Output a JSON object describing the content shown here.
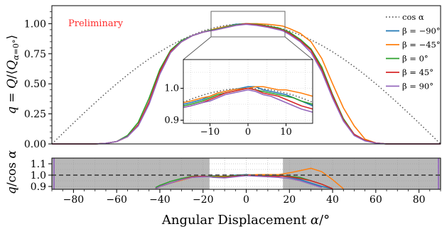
{
  "annotation": "Preliminary",
  "colors": {
    "cos": "#555555",
    "b_m90": "#1f77b4",
    "b_m45": "#ff7f0e",
    "b_0": "#2ca02c",
    "b_45": "#d62728",
    "b_90": "#9467bd",
    "annotation": "#ff2b2b",
    "shade": "#b8b8b8",
    "ref_line": "#555555"
  },
  "chart_data": [
    {
      "type": "line",
      "panel": "main",
      "ylabel": "q = Q/⟨Q_{α=0°}⟩",
      "xlim": [
        -90,
        90
      ],
      "ylim": [
        0,
        1.15
      ],
      "y_ticks": [
        "0.00",
        "0.25",
        "0.50",
        "0.75",
        "1.00"
      ],
      "grid": false,
      "legend_position": "top-right",
      "x": [
        -90,
        -85,
        -80,
        -75,
        -70,
        -65,
        -60,
        -55,
        -50,
        -45,
        -40,
        -35,
        -30,
        -25,
        -20,
        -17,
        -15,
        -10,
        -5,
        0,
        5,
        10,
        15,
        17,
        20,
        25,
        30,
        35,
        40,
        45,
        50,
        55,
        60,
        65,
        70,
        75,
        80,
        85,
        90
      ],
      "series": [
        {
          "name": "cos α",
          "style": "dotted",
          "values": [
            0.0,
            0.087,
            0.174,
            0.259,
            0.342,
            0.423,
            0.5,
            0.574,
            0.643,
            0.707,
            0.766,
            0.819,
            0.866,
            0.906,
            0.94,
            0.956,
            0.966,
            0.985,
            0.996,
            1.0,
            0.996,
            0.985,
            0.966,
            0.956,
            0.94,
            0.906,
            0.866,
            0.819,
            0.766,
            0.707,
            0.643,
            0.574,
            0.5,
            0.423,
            0.342,
            0.259,
            0.174,
            0.087,
            0.0
          ]
        },
        {
          "name": "β = −90°",
          "values": [
            0.0,
            0.0,
            0.0,
            0.0,
            0.0,
            0.005,
            0.02,
            0.06,
            0.16,
            0.34,
            0.6,
            0.77,
            0.85,
            0.9,
            0.93,
            0.945,
            0.95,
            0.975,
            0.995,
            1.0,
            0.995,
            0.98,
            0.955,
            0.945,
            0.92,
            0.86,
            0.78,
            0.62,
            0.39,
            0.2,
            0.08,
            0.03,
            0.008,
            0.0,
            0.0,
            0.0,
            0.0,
            0.0,
            0.0
          ]
        },
        {
          "name": "β = −45°",
          "values": [
            0.0,
            0.0,
            0.0,
            0.0,
            0.0,
            0.005,
            0.02,
            0.06,
            0.16,
            0.34,
            0.6,
            0.76,
            0.85,
            0.9,
            0.93,
            0.945,
            0.955,
            0.975,
            0.99,
            1.0,
            1.0,
            0.995,
            0.985,
            0.98,
            0.96,
            0.92,
            0.85,
            0.71,
            0.5,
            0.3,
            0.15,
            0.04,
            0.008,
            0.0,
            0.0,
            0.0,
            0.0,
            0.0,
            0.0
          ]
        },
        {
          "name": "β = 0°",
          "values": [
            0.0,
            0.0,
            0.0,
            0.0,
            0.0,
            0.005,
            0.02,
            0.07,
            0.18,
            0.38,
            0.62,
            0.78,
            0.86,
            0.9,
            0.93,
            0.945,
            0.95,
            0.97,
            0.99,
            1.0,
            0.995,
            0.98,
            0.965,
            0.95,
            0.93,
            0.87,
            0.79,
            0.64,
            0.41,
            0.21,
            0.08,
            0.03,
            0.008,
            0.0,
            0.0,
            0.0,
            0.0,
            0.0,
            0.0
          ]
        },
        {
          "name": "β = 45°",
          "values": [
            0.0,
            0.0,
            0.0,
            0.0,
            0.0,
            0.005,
            0.02,
            0.06,
            0.16,
            0.35,
            0.6,
            0.77,
            0.85,
            0.9,
            0.93,
            0.94,
            0.945,
            0.965,
            0.985,
            1.0,
            0.99,
            0.975,
            0.955,
            0.945,
            0.92,
            0.86,
            0.78,
            0.62,
            0.4,
            0.2,
            0.08,
            0.03,
            0.008,
            0.0,
            0.0,
            0.0,
            0.0,
            0.0,
            0.0
          ]
        },
        {
          "name": "β = 90°",
          "values": [
            0.0,
            0.0,
            0.0,
            0.0,
            0.0,
            0.005,
            0.02,
            0.06,
            0.15,
            0.33,
            0.58,
            0.76,
            0.85,
            0.9,
            0.93,
            0.94,
            0.945,
            0.965,
            0.985,
            0.995,
            0.985,
            0.97,
            0.95,
            0.94,
            0.91,
            0.85,
            0.76,
            0.6,
            0.38,
            0.19,
            0.07,
            0.025,
            0.006,
            0.0,
            0.0,
            0.0,
            0.0,
            0.0,
            0.0
          ]
        }
      ]
    },
    {
      "type": "line",
      "panel": "inset",
      "xlim": [
        -17,
        17
      ],
      "ylim": [
        0.89,
        1.09
      ],
      "x_ticks": [
        "−10",
        "0",
        "10"
      ],
      "y_ticks": [
        "0.9",
        "1.0"
      ],
      "grid": true,
      "x": [
        -17,
        -15,
        -12,
        -10,
        -8,
        -6,
        -4,
        -2,
        0,
        2,
        4,
        6,
        8,
        10,
        12,
        14,
        17
      ],
      "series": [
        {
          "name": "cos α",
          "style": "dotted",
          "values": [
            0.956,
            0.966,
            0.978,
            0.985,
            0.99,
            0.995,
            0.998,
            0.999,
            1.0,
            0.999,
            0.998,
            0.995,
            0.99,
            0.985,
            0.978,
            0.97,
            0.956
          ]
        },
        {
          "name": "β = −90°",
          "values": [
            0.95,
            0.955,
            0.965,
            0.975,
            0.985,
            0.99,
            0.995,
            1.0,
            1.005,
            1.005,
            0.995,
            0.99,
            0.985,
            0.98,
            0.97,
            0.96,
            0.945
          ]
        },
        {
          "name": "β = −45°",
          "values": [
            0.955,
            0.96,
            0.97,
            0.975,
            0.985,
            0.99,
            0.995,
            0.998,
            1.0,
            1.005,
            1.005,
            1.0,
            0.995,
            0.995,
            0.99,
            0.985,
            0.975
          ]
        },
        {
          "name": "β = 0°",
          "values": [
            0.945,
            0.95,
            0.96,
            0.97,
            0.98,
            0.985,
            0.99,
            0.995,
            1.0,
            0.995,
            0.99,
            0.985,
            0.98,
            0.975,
            0.97,
            0.96,
            0.95
          ]
        },
        {
          "name": "β = 45°",
          "values": [
            0.94,
            0.945,
            0.955,
            0.965,
            0.975,
            0.985,
            0.99,
            0.995,
            1.0,
            0.995,
            0.985,
            0.98,
            0.975,
            0.965,
            0.955,
            0.945,
            0.935
          ]
        },
        {
          "name": "β = 90°",
          "values": [
            0.94,
            0.945,
            0.955,
            0.96,
            0.97,
            0.98,
            0.985,
            0.99,
            0.995,
            0.99,
            0.98,
            0.975,
            0.965,
            0.955,
            0.945,
            0.935,
            0.925
          ]
        }
      ]
    },
    {
      "type": "line",
      "panel": "ratio",
      "xlabel": "Angular Displacement α/°",
      "ylabel": "q/cos α",
      "xlim": [
        -90,
        90
      ],
      "ylim": [
        0.875,
        1.15
      ],
      "x_ticks": [
        "−80",
        "−60",
        "−40",
        "−20",
        "0",
        "20",
        "40",
        "60",
        "80"
      ],
      "y_ticks": [
        "0.9",
        "1.0",
        "1.1"
      ],
      "reference_value": 1.0,
      "shaded_ranges": [
        [
          -90,
          -17
        ],
        [
          17,
          90
        ]
      ],
      "grid": true,
      "x": [
        -42,
        -40,
        -35,
        -30,
        -25,
        -20,
        -17,
        -15,
        -10,
        -5,
        0,
        5,
        10,
        15,
        17,
        20,
        25,
        30,
        35,
        40,
        45
      ],
      "series": [
        {
          "name": "β = −90°",
          "values": [
            0.88,
            0.9,
            0.93,
            0.96,
            0.98,
            0.99,
            0.99,
            0.995,
            0.99,
            1.0,
            1.005,
            1.0,
            0.995,
            0.99,
            0.99,
            0.98,
            0.96,
            0.93,
            0.9,
            0.88,
            null
          ]
        },
        {
          "name": "β = −45°",
          "values": [
            0.88,
            0.9,
            0.93,
            0.955,
            0.98,
            0.99,
            0.99,
            0.99,
            0.99,
            0.995,
            1.0,
            1.005,
            1.005,
            1.005,
            1.01,
            1.02,
            1.04,
            1.06,
            1.03,
            0.96,
            0.88
          ]
        },
        {
          "name": "β = 0°",
          "values": [
            0.89,
            0.91,
            0.945,
            0.97,
            0.99,
            0.99,
            0.99,
            0.985,
            0.985,
            0.995,
            1.0,
            0.995,
            0.995,
            0.995,
            0.995,
            0.99,
            0.98,
            0.95,
            0.92,
            0.88,
            null
          ]
        },
        {
          "name": "β = 45°",
          "values": [
            0.88,
            0.9,
            0.93,
            0.96,
            0.985,
            0.99,
            0.985,
            0.98,
            0.98,
            0.99,
            1.0,
            0.995,
            0.99,
            0.99,
            0.99,
            0.985,
            0.97,
            0.95,
            0.92,
            0.88,
            null
          ]
        },
        {
          "name": "β = 90°",
          "values": [
            0.88,
            0.9,
            0.93,
            0.96,
            0.98,
            0.985,
            0.985,
            0.98,
            0.975,
            0.985,
            0.995,
            0.99,
            0.985,
            0.98,
            0.975,
            0.97,
            0.95,
            0.92,
            0.89,
            null,
            null
          ]
        }
      ]
    }
  ]
}
